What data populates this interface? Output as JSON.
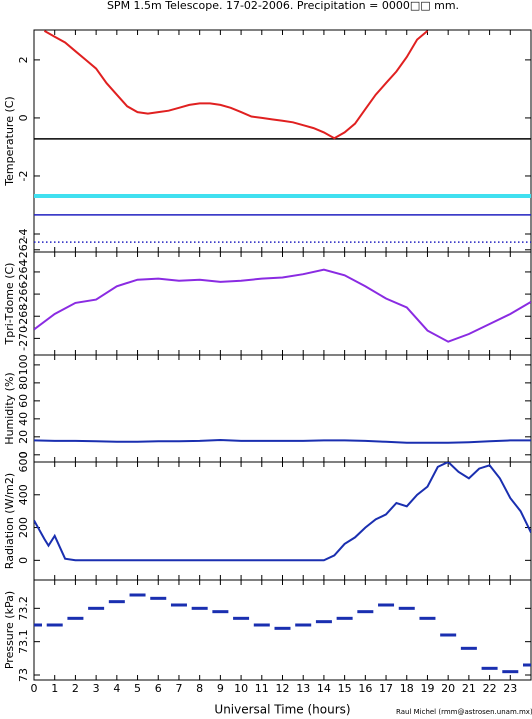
{
  "title": "SPM 1.5m Telescope. 17-02-2006. Precipitation = 0000□□ mm.",
  "credit": "Raul Michel (rmm@astrosen.unam.mx)",
  "chart_data": [
    {
      "type": "line",
      "ylabel": "Temperature (C)",
      "x": [
        0.5,
        1,
        1.5,
        2,
        2.5,
        3,
        3.5,
        4,
        4.5,
        5,
        5.5,
        6,
        6.5,
        7,
        7.5,
        8,
        8.5,
        9,
        9.5,
        10,
        10.5,
        11,
        11.5,
        12,
        12.5,
        13,
        13.5,
        14,
        14.5,
        15,
        15.5,
        16,
        16.5,
        17,
        17.5,
        18,
        18.5,
        19,
        23.8
      ],
      "series": [
        {
          "color": "#e02020",
          "values": [
            3.0,
            2.8,
            2.6,
            2.3,
            2.0,
            1.7,
            1.2,
            0.8,
            0.4,
            0.2,
            0.15,
            0.2,
            0.25,
            0.35,
            0.45,
            0.5,
            0.5,
            0.45,
            0.35,
            0.2,
            0.05,
            0.0,
            -0.05,
            -0.1,
            -0.15,
            -0.25,
            -0.35,
            -0.5,
            -0.7,
            -0.5,
            -0.2,
            0.3,
            0.8,
            1.2,
            1.6,
            2.1,
            2.7,
            3.0,
            null
          ]
        }
      ],
      "reference_lines": [
        {
          "value": -0.72,
          "color": "#000000",
          "style": "solid"
        },
        {
          "value": -2.69,
          "color": "#40e0f0",
          "style": "thick"
        },
        {
          "value": -3.34,
          "color": "#2020c0",
          "style": "solid"
        },
        {
          "value": -4.28,
          "color": "#2020c0",
          "style": "dotted"
        }
      ],
      "ylim": [
        -4.62,
        3.03
      ],
      "yticks": [
        -4,
        -2,
        0,
        2
      ]
    },
    {
      "type": "line",
      "ylabel": "Tpri-Tdome (C)",
      "x": [
        0,
        1,
        2,
        3,
        4,
        5,
        6,
        7,
        8,
        9,
        10,
        11,
        12,
        13,
        14,
        15,
        16,
        17,
        18,
        19,
        20,
        21,
        22,
        23,
        24
      ],
      "series": [
        {
          "color": "#8a2be2",
          "values": [
            -269.2,
            -267.8,
            -266.8,
            -266.5,
            -265.3,
            -264.7,
            -264.6,
            -264.8,
            -264.7,
            -264.9,
            -264.8,
            -264.6,
            -264.5,
            -264.2,
            -263.8,
            -264.3,
            -265.3,
            -266.4,
            -267.2,
            -269.3,
            -270.3,
            -269.6,
            -268.7,
            -267.8,
            -266.7
          ]
        }
      ],
      "ylim": [
        -271.5,
        -262.2
      ],
      "yticks": [
        -270,
        -268,
        -266,
        -264,
        -262
      ]
    },
    {
      "type": "line",
      "ylabel": "Humidity (%)",
      "x": [
        0,
        1,
        2,
        3,
        4,
        5,
        6,
        7,
        8,
        9,
        10,
        11,
        12,
        13,
        14,
        15,
        16,
        17,
        18,
        19,
        20,
        21,
        22,
        23,
        24
      ],
      "series": [
        {
          "color": "#1a2fb0",
          "values": [
            16,
            15.5,
            15.5,
            15,
            14.5,
            14.5,
            15,
            15,
            15.5,
            16.5,
            15.5,
            15.5,
            15.5,
            15.5,
            16,
            16,
            15.5,
            14.5,
            13.5,
            13.5,
            13.5,
            14,
            15,
            16,
            16
          ]
        }
      ],
      "ylim": [
        -8,
        111
      ],
      "yticks": [
        0,
        20,
        40,
        60,
        80,
        100
      ]
    },
    {
      "type": "line",
      "ylabel": "Radiation (W/m2)",
      "x": [
        0,
        0.5,
        0.7,
        1,
        1.5,
        2,
        4,
        6,
        8,
        10,
        12,
        14,
        14.5,
        15,
        15.5,
        16,
        16.5,
        17,
        17.5,
        18,
        18.5,
        19,
        19.5,
        20,
        20.5,
        21,
        21.5,
        22,
        22.5,
        23,
        23.5,
        24
      ],
      "series": [
        {
          "color": "#1a2fb0",
          "values": [
            244,
            130,
            90,
            150,
            10,
            0,
            0,
            0,
            0,
            0,
            0,
            0,
            30,
            100,
            140,
            200,
            250,
            280,
            350,
            330,
            400,
            450,
            570,
            600,
            540,
            500,
            560,
            580,
            500,
            380,
            300,
            170
          ]
        }
      ],
      "ylim": [
        -120,
        600
      ],
      "yticks": [
        0,
        200,
        400,
        600
      ]
    },
    {
      "type": "scatter",
      "ylabel": "Pressure (kPa)",
      "xlabel": "Universal Time (hours)",
      "x": [
        0,
        1,
        2,
        3,
        4,
        5,
        6,
        7,
        8,
        9,
        10,
        11,
        12,
        13,
        14,
        15,
        16,
        17,
        18,
        19,
        20,
        21,
        22,
        23,
        24
      ],
      "series": [
        {
          "color": "#1a2fb0",
          "values": [
            73.15,
            73.15,
            73.17,
            73.2,
            73.22,
            73.24,
            73.23,
            73.21,
            73.2,
            73.19,
            73.17,
            73.15,
            73.14,
            73.15,
            73.16,
            73.17,
            73.19,
            73.21,
            73.2,
            73.17,
            73.12,
            73.08,
            73.02,
            73.01,
            73.03
          ]
        }
      ],
      "ylim": [
        72.985,
        73.285
      ],
      "yticks": [
        73,
        73.1,
        73.2
      ],
      "xlim": [
        0,
        24
      ],
      "xticks": [
        0,
        1,
        2,
        3,
        4,
        5,
        6,
        7,
        8,
        9,
        10,
        11,
        12,
        13,
        14,
        15,
        16,
        17,
        18,
        19,
        20,
        21,
        22,
        23
      ]
    }
  ]
}
